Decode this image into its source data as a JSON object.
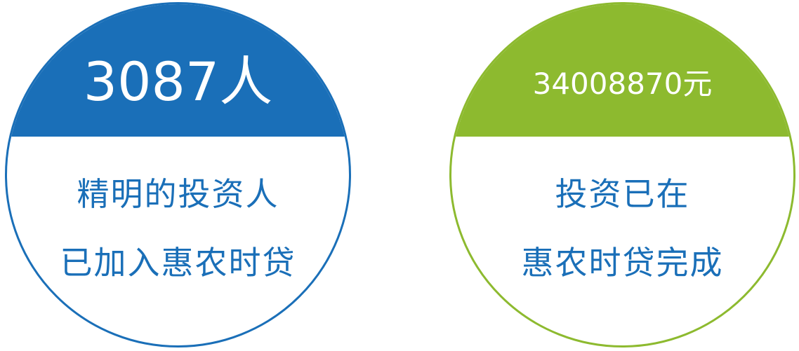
{
  "colors": {
    "blue": "#1a6fb8",
    "green": "#8dba2f",
    "text_blue": "#1a6fb8"
  },
  "badges": [
    {
      "value": "3087",
      "unit": "人",
      "line1": "精明的投资人",
      "line2": "已加入惠农时贷"
    },
    {
      "value": "34008870",
      "unit": "元",
      "line1": "投资已在",
      "line2": "惠农时贷完成"
    }
  ]
}
